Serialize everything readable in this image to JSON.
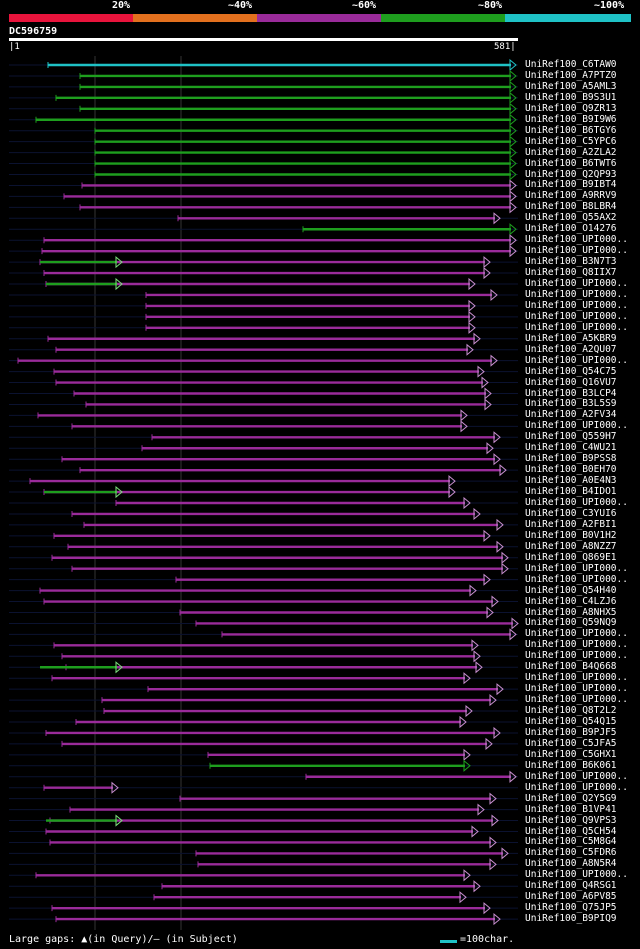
{
  "legend": {
    "segments": [
      {
        "label": "20%",
        "color": "#e8143c"
      },
      {
        "label": "~40%",
        "color": "#e2701e"
      },
      {
        "label": "~60%",
        "color": "#9a2b9a"
      },
      {
        "label": "~80%",
        "color": "#1e9e1e"
      },
      {
        "label": "~100%",
        "color": "#1fc2c6"
      }
    ]
  },
  "query": {
    "id": "DC596759",
    "start": "1",
    "end": "581"
  },
  "footer": {
    "gaps_text": "Large gaps: ▲(in Query)/– (in Subject)",
    "scale_text": "=100char."
  },
  "hits": [
    {
      "label": "UniRef100_C6TAW0",
      "color": "cyan"
    },
    {
      "label": "UniRef100_A7PTZ0",
      "color": "green"
    },
    {
      "label": "UniRef100_A5AML3",
      "color": "green"
    },
    {
      "label": "UniRef100_B9S3U1",
      "color": "green"
    },
    {
      "label": "UniRef100_Q9ZR13",
      "color": "green"
    },
    {
      "label": "UniRef100_B9I9W6",
      "color": "green"
    },
    {
      "label": "UniRef100_B6TGY6",
      "color": "green"
    },
    {
      "label": "UniRef100_C5YPC6",
      "color": "green"
    },
    {
      "label": "UniRef100_A2ZLA2",
      "color": "green"
    },
    {
      "label": "UniRef100_B6TWT6",
      "color": "green"
    },
    {
      "label": "UniRef100_Q2QP93",
      "color": "green"
    },
    {
      "label": "UniRef100_B9IBT4",
      "color": "purple"
    },
    {
      "label": "UniRef100_A9RRV9",
      "color": "purple"
    },
    {
      "label": "UniRef100_B8LBR4",
      "color": "purple"
    },
    {
      "label": "UniRef100_Q55AX2",
      "color": "purple"
    },
    {
      "label": "UniRef100_O14276",
      "color": "green"
    },
    {
      "label": "UniRef100_UPI000..",
      "color": "purple"
    },
    {
      "label": "UniRef100_UPI000..",
      "color": "purple"
    },
    {
      "label": "UniRef100_B3N7T3",
      "color": "purple"
    },
    {
      "label": "UniRef100_Q8IIX7",
      "color": "purple"
    },
    {
      "label": "UniRef100_UPI000..",
      "color": "purple"
    },
    {
      "label": "UniRef100_UPI000..",
      "color": "purple"
    },
    {
      "label": "UniRef100_UPI000..",
      "color": "purple"
    },
    {
      "label": "UniRef100_UPI000..",
      "color": "purple"
    },
    {
      "label": "UniRef100_UPI000..",
      "color": "purple"
    },
    {
      "label": "UniRef100_A5KBR9",
      "color": "purple"
    },
    {
      "label": "UniRef100_A2QU07",
      "color": "purple"
    },
    {
      "label": "UniRef100_UPI000..",
      "color": "purple"
    },
    {
      "label": "UniRef100_Q54C75",
      "color": "purple"
    },
    {
      "label": "UniRef100_Q16VU7",
      "color": "purple"
    },
    {
      "label": "UniRef100_B3LCP4",
      "color": "purple"
    },
    {
      "label": "UniRef100_B3L5S9",
      "color": "purple"
    },
    {
      "label": "UniRef100_A2FV34",
      "color": "purple"
    },
    {
      "label": "UniRef100_UPI000..",
      "color": "purple"
    },
    {
      "label": "UniRef100_Q559H7",
      "color": "purple"
    },
    {
      "label": "UniRef100_C4WU21",
      "color": "purple"
    },
    {
      "label": "UniRef100_B9PSS8",
      "color": "purple"
    },
    {
      "label": "UniRef100_B0EH70",
      "color": "purple"
    },
    {
      "label": "UniRef100_A0E4N3",
      "color": "purple"
    },
    {
      "label": "UniRef100_B4IDO1",
      "color": "purple"
    },
    {
      "label": "UniRef100_UPI000..",
      "color": "purple"
    },
    {
      "label": "UniRef100_C3YUI6",
      "color": "purple"
    },
    {
      "label": "UniRef100_A2FBI1",
      "color": "purple"
    },
    {
      "label": "UniRef100_B0V1H2",
      "color": "purple"
    },
    {
      "label": "UniRef100_A8NZZ7",
      "color": "purple"
    },
    {
      "label": "UniRef100_Q869E1",
      "color": "purple"
    },
    {
      "label": "UniRef100_UPI000..",
      "color": "purple"
    },
    {
      "label": "UniRef100_UPI000..",
      "color": "purple"
    },
    {
      "label": "UniRef100_Q54H40",
      "color": "purple"
    },
    {
      "label": "UniRef100_C4LZJ6",
      "color": "purple"
    },
    {
      "label": "UniRef100_A8NHX5",
      "color": "purple"
    },
    {
      "label": "UniRef100_Q59NQ9",
      "color": "purple"
    },
    {
      "label": "UniRef100_UPI000..",
      "color": "purple"
    },
    {
      "label": "UniRef100_UPI000..",
      "color": "purple"
    },
    {
      "label": "UniRef100_UPI000..",
      "color": "purple"
    },
    {
      "label": "UniRef100_B4Q668",
      "color": "purple"
    },
    {
      "label": "UniRef100_UPI000..",
      "color": "purple"
    },
    {
      "label": "UniRef100_UPI000..",
      "color": "purple"
    },
    {
      "label": "UniRef100_UPI000..",
      "color": "purple"
    },
    {
      "label": "UniRef100_Q8T2L2",
      "color": "purple"
    },
    {
      "label": "UniRef100_Q54Q15",
      "color": "purple"
    },
    {
      "label": "UniRef100_B9PJF5",
      "color": "purple"
    },
    {
      "label": "UniRef100_C5JFA5",
      "color": "purple"
    },
    {
      "label": "UniRef100_C5GHX1",
      "color": "purple"
    },
    {
      "label": "UniRef100_B6K061",
      "color": "green"
    },
    {
      "label": "UniRef100_UPI000..",
      "color": "purple"
    },
    {
      "label": "UniRef100_UPI000..",
      "color": "purple"
    },
    {
      "label": "UniRef100_Q2Y5G9",
      "color": "purple"
    },
    {
      "label": "UniRef100_B1VP41",
      "color": "purple"
    },
    {
      "label": "UniRef100_Q9VPS3",
      "color": "purple"
    },
    {
      "label": "UniRef100_Q5CH54",
      "color": "purple"
    },
    {
      "label": "UniRef100_C5M8G4",
      "color": "purple"
    },
    {
      "label": "UniRef100_C5FDR6",
      "color": "purple"
    },
    {
      "label": "UniRef100_A8N5R4",
      "color": "purple"
    },
    {
      "label": "UniRef100_UPI000..",
      "color": "purple"
    },
    {
      "label": "UniRef100_Q4RSG1",
      "color": "purple"
    },
    {
      "label": "UniRef100_A6PV85",
      "color": "purple"
    },
    {
      "label": "UniRef100_Q75JP5",
      "color": "purple"
    },
    {
      "label": "UniRef100_B9PIQ9",
      "color": "purple"
    }
  ]
}
